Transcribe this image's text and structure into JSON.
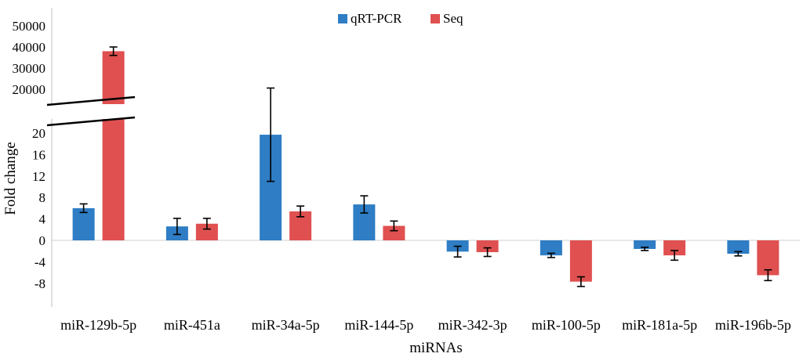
{
  "chart_data": {
    "type": "bar",
    "title": "",
    "xlabel": "miRNAs",
    "ylabel": "Fold change",
    "categories": [
      "miR-129b-5p",
      "miR-451a",
      "miR-34a-5p",
      "miR-144-5p",
      "miR-342-3p",
      "miR-100-5p",
      "miR-181a-5p",
      "miR-196b-5p"
    ],
    "series": [
      {
        "name": "qRT-PCR",
        "color": "#2e7dc5",
        "values": [
          6.0,
          2.6,
          19.7,
          6.7,
          -2.1,
          -2.8,
          -1.6,
          -2.5
        ],
        "errors": [
          0.8,
          1.5,
          8.7,
          1.6,
          1.0,
          0.4,
          0.3,
          0.4
        ]
      },
      {
        "name": "Seq",
        "color": "#e05050",
        "values": [
          38000,
          3.1,
          5.4,
          2.7,
          -2.2,
          -7.7,
          -2.8,
          -6.5
        ],
        "errors": [
          2000,
          1.0,
          1.0,
          0.9,
          0.8,
          0.9,
          0.9,
          1.0
        ]
      }
    ],
    "axis_lower": {
      "ylim": [
        -10,
        21
      ],
      "ticks": [
        "20",
        "16",
        "12",
        "8",
        "4",
        "0",
        "-4",
        "-8"
      ],
      "tick_values": [
        20,
        16,
        12,
        8,
        4,
        0,
        -4,
        -8
      ]
    },
    "axis_upper": {
      "ylim": [
        15000,
        55000
      ],
      "ticks": [
        "50000",
        "40000",
        "30000",
        "20000"
      ],
      "tick_values": [
        50000,
        40000,
        30000,
        20000
      ]
    },
    "legend": {
      "position": "top-center"
    },
    "axis_break": true
  }
}
